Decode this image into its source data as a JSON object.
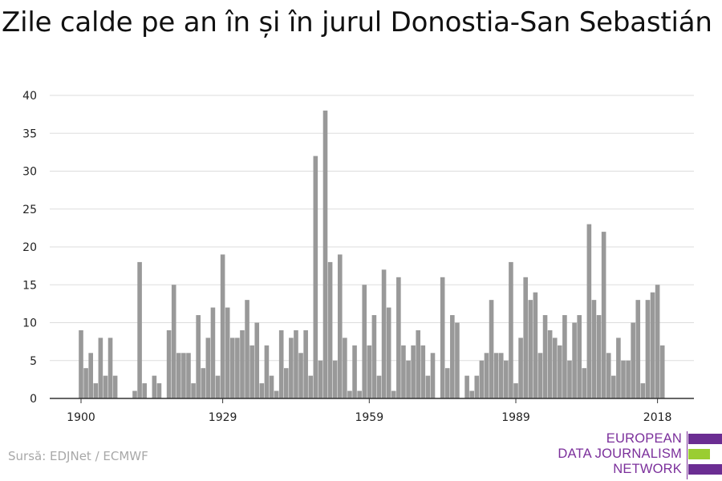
{
  "title": "Zile calde pe an în și în jurul Donostia-San Sebastián",
  "source": "Sursă: EDJNet / ECMWF",
  "logo": {
    "line1": "EUROPEAN",
    "line2": "DATA JOURNALISM",
    "line3": "NETWORK"
  },
  "colors": {
    "bar": "#999999",
    "grid": "#dddddd",
    "axis": "#333333",
    "brand_purple": "#6b2d92",
    "brand_green": "#9acd32"
  },
  "chart_data": {
    "type": "bar",
    "x_start": 1900,
    "values": [
      9,
      4,
      6,
      2,
      8,
      3,
      8,
      3,
      0,
      0,
      0,
      1,
      18,
      2,
      0,
      3,
      2,
      0,
      9,
      15,
      6,
      6,
      6,
      2,
      11,
      4,
      8,
      12,
      3,
      19,
      12,
      8,
      8,
      9,
      13,
      7,
      10,
      2,
      7,
      3,
      1,
      9,
      4,
      8,
      9,
      6,
      9,
      3,
      32,
      5,
      38,
      18,
      5,
      19,
      8,
      1,
      7,
      1,
      15,
      7,
      11,
      3,
      17,
      12,
      1,
      16,
      7,
      5,
      7,
      9,
      7,
      3,
      6,
      0,
      16,
      4,
      11,
      10,
      0,
      3,
      1,
      3,
      5,
      6,
      13,
      6,
      6,
      5,
      18,
      2,
      8,
      16,
      13,
      14,
      6,
      11,
      9,
      8,
      7,
      11,
      5,
      10,
      11,
      4,
      23,
      13,
      11,
      22,
      6,
      3,
      8,
      5,
      5,
      10,
      13,
      2,
      13,
      14,
      15,
      7
    ],
    "xticks": [
      "1900",
      "1929",
      "1959",
      "1989",
      "2018"
    ],
    "yticks": [
      "0",
      "5",
      "10",
      "15",
      "20",
      "25",
      "30",
      "35",
      "40"
    ],
    "ylim": [
      0,
      40
    ],
    "grid": true
  }
}
